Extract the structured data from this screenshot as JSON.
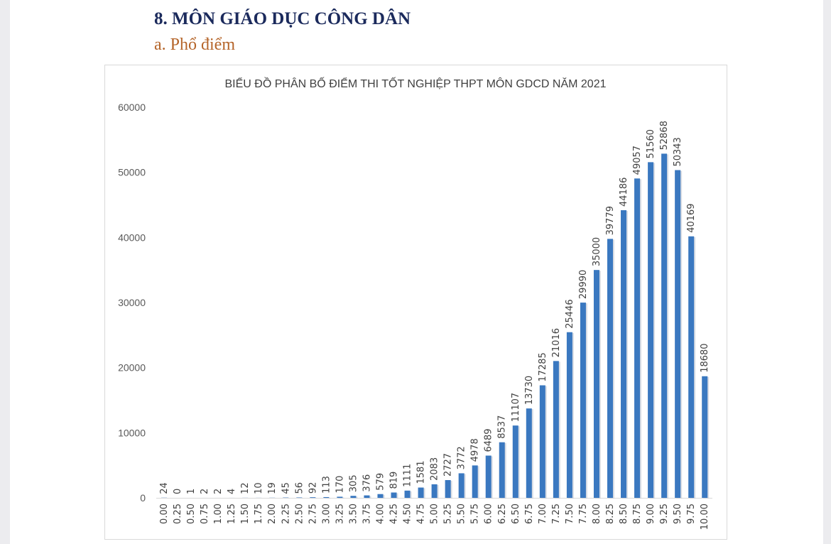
{
  "document": {
    "heading": "8.  MÔN GIÁO DỤC CÔNG DÂN",
    "subheading": "a.  Phổ điểm"
  },
  "chart_data": {
    "type": "bar",
    "title": "BIỂU ĐỒ PHÂN BỐ ĐIỂM THI TỐT NGHIỆP THPT MÔN GDCD NĂM 2021",
    "xlabel": "",
    "ylabel": "",
    "ylim": [
      0,
      60000
    ],
    "yticks": [
      0,
      10000,
      20000,
      30000,
      40000,
      50000,
      60000
    ],
    "grid": false,
    "bar_color": "#3a78c0",
    "categories": [
      "0.00",
      "0.25",
      "0.50",
      "0.75",
      "1.00",
      "1.25",
      "1.50",
      "1.75",
      "2.00",
      "2.25",
      "2.50",
      "2.75",
      "3.00",
      "3.25",
      "3.50",
      "3.75",
      "4.00",
      "4.25",
      "4.50",
      "4.75",
      "5.00",
      "5.25",
      "5.50",
      "5.75",
      "6.00",
      "6.25",
      "6.50",
      "6.75",
      "7.00",
      "7.25",
      "7.50",
      "7.75",
      "8.00",
      "8.25",
      "8.50",
      "8.75",
      "9.00",
      "9.25",
      "9.50",
      "9.75",
      "10.00"
    ],
    "values": [
      24,
      0,
      1,
      2,
      2,
      4,
      12,
      10,
      19,
      45,
      56,
      92,
      113,
      170,
      305,
      376,
      579,
      819,
      1111,
      1581,
      2083,
      2727,
      3772,
      4978,
      6489,
      8537,
      11107,
      13730,
      17285,
      21016,
      25446,
      29990,
      35000,
      39779,
      44186,
      49057,
      51560,
      52868,
      50343,
      40169,
      18680
    ]
  }
}
